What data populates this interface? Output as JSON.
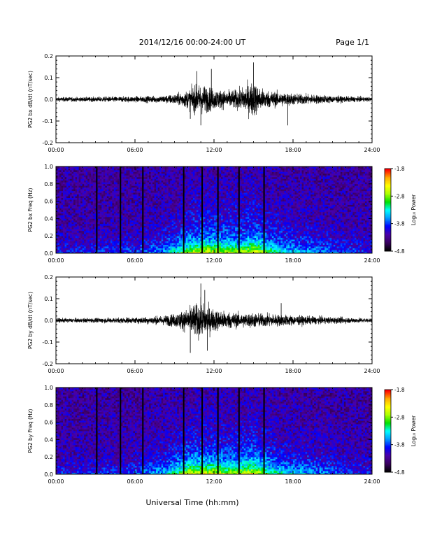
{
  "header": {
    "title": "2014/12/16  00:00-24:00 UT",
    "page": "Page 1/1"
  },
  "footer": {
    "xlabel": "Universal Time (hh:mm)"
  },
  "chart_data": [
    {
      "type": "line",
      "title": "",
      "ylabel": "PG2 bx dB/dt (nT/sec)",
      "xlabel": "",
      "x_ticks": [
        "00:00",
        "06:00",
        "12:00",
        "18:00",
        "24:00"
      ],
      "xlim": [
        0,
        24
      ],
      "ylim": [
        -0.2,
        0.2
      ],
      "y_ticks": [
        "-0.2",
        "-0.1",
        "0.0",
        "0.1",
        "0.2"
      ],
      "envelope": {
        "x_hours": [
          0,
          2,
          4,
          6,
          8,
          9,
          10,
          10.5,
          11,
          11.5,
          12,
          13,
          14,
          14.5,
          15,
          15.5,
          16,
          17,
          18,
          19,
          20,
          22,
          24
        ],
        "amplitude": [
          0.015,
          0.015,
          0.018,
          0.02,
          0.025,
          0.035,
          0.06,
          0.09,
          0.1,
          0.09,
          0.07,
          0.06,
          0.07,
          0.1,
          0.12,
          0.08,
          0.06,
          0.05,
          0.04,
          0.035,
          0.03,
          0.02,
          0.015
        ]
      },
      "spikes": [
        {
          "x": 10.7,
          "y": 0.13
        },
        {
          "x": 11.8,
          "y": 0.14
        },
        {
          "x": 15.0,
          "y": 0.17
        },
        {
          "x": 17.6,
          "y": -0.12
        },
        {
          "x": 11.0,
          "y": -0.12
        },
        {
          "x": 10.2,
          "y": -0.09
        }
      ]
    },
    {
      "type": "heatmap",
      "title": "",
      "ylabel": "PG2 bx Freq (Hz)",
      "xlabel": "",
      "x_ticks": [
        "00:00",
        "06:00",
        "12:00",
        "18:00",
        "24:00"
      ],
      "xlim": [
        0,
        24
      ],
      "ylim": [
        0.0,
        1.0
      ],
      "y_ticks": [
        "0.0",
        "0.2",
        "0.4",
        "0.6",
        "0.8",
        "1.0"
      ],
      "colorbar": {
        "label": "Log₁₀ Power",
        "range": [
          -4.8,
          -1.8
        ],
        "ticks": [
          "-1.8",
          "-2.8",
          "-3.8",
          "-4.8"
        ],
        "colormap": [
          "#000000",
          "#3a0060",
          "#4a00a8",
          "#0000ff",
          "#0099ff",
          "#00ffff",
          "#00e000",
          "#aaff00",
          "#ffff00",
          "#ffaa00",
          "#ff0000"
        ]
      },
      "activity_profile": {
        "x_hours": [
          0,
          2,
          4,
          6,
          8,
          9,
          10,
          11,
          12,
          13,
          14,
          15,
          16,
          17,
          18,
          20,
          22,
          24
        ],
        "level": [
          0.15,
          0.15,
          0.18,
          0.2,
          0.3,
          0.45,
          0.7,
          0.8,
          0.75,
          0.7,
          0.7,
          0.85,
          0.6,
          0.45,
          0.4,
          0.3,
          0.2,
          0.15
        ]
      },
      "data_gaps_hours": [
        3.1,
        4.9,
        6.6,
        9.7,
        11.1,
        12.3,
        13.9,
        15.8
      ]
    },
    {
      "type": "line",
      "title": "",
      "ylabel": "PG2 by dB/dt (nT/sec)",
      "xlabel": "",
      "x_ticks": [
        "00:00",
        "06:00",
        "12:00",
        "18:00",
        "24:00"
      ],
      "xlim": [
        0,
        24
      ],
      "ylim": [
        -0.2,
        0.2
      ],
      "y_ticks": [
        "-0.2",
        "-0.1",
        "0.0",
        "0.1",
        "0.2"
      ],
      "envelope": {
        "x_hours": [
          0,
          2,
          4,
          6,
          8,
          9,
          10,
          10.5,
          11,
          11.5,
          12,
          13,
          14,
          15,
          16,
          17,
          18,
          19,
          20,
          22,
          24
        ],
        "amplitude": [
          0.015,
          0.015,
          0.018,
          0.02,
          0.03,
          0.045,
          0.08,
          0.11,
          0.12,
          0.1,
          0.075,
          0.06,
          0.05,
          0.05,
          0.045,
          0.04,
          0.035,
          0.03,
          0.025,
          0.02,
          0.015
        ]
      },
      "spikes": [
        {
          "x": 11.0,
          "y": 0.17
        },
        {
          "x": 11.3,
          "y": 0.14
        },
        {
          "x": 10.2,
          "y": -0.15
        },
        {
          "x": 11.5,
          "y": -0.14
        },
        {
          "x": 17.1,
          "y": 0.08
        }
      ]
    },
    {
      "type": "heatmap",
      "title": "",
      "ylabel": "PG2 by Freq (Hz)",
      "xlabel": "",
      "x_ticks": [
        "00:00",
        "06:00",
        "12:00",
        "18:00",
        "24:00"
      ],
      "xlim": [
        0,
        24
      ],
      "ylim": [
        0.0,
        1.0
      ],
      "y_ticks": [
        "0.0",
        "0.2",
        "0.4",
        "0.6",
        "0.8",
        "1.0"
      ],
      "colorbar": {
        "label": "Log₁₀ Power",
        "range": [
          -4.8,
          -1.8
        ],
        "ticks": [
          "-1.8",
          "-2.8",
          "-3.8",
          "-4.8"
        ],
        "colormap": [
          "#000000",
          "#3a0060",
          "#4a00a8",
          "#0000ff",
          "#0099ff",
          "#00ffff",
          "#00e000",
          "#aaff00",
          "#ffff00",
          "#ffaa00",
          "#ff0000"
        ]
      },
      "activity_profile": {
        "x_hours": [
          0,
          2,
          4,
          6,
          8,
          9,
          10,
          11,
          12,
          13,
          14,
          15,
          16,
          17,
          18,
          20,
          22,
          24
        ],
        "level": [
          0.15,
          0.15,
          0.18,
          0.2,
          0.35,
          0.5,
          0.75,
          0.8,
          0.8,
          0.7,
          0.75,
          0.85,
          0.6,
          0.45,
          0.4,
          0.3,
          0.2,
          0.15
        ]
      },
      "data_gaps_hours": [
        3.1,
        4.9,
        6.6,
        9.7,
        11.1,
        12.3,
        13.9,
        15.8
      ]
    }
  ]
}
